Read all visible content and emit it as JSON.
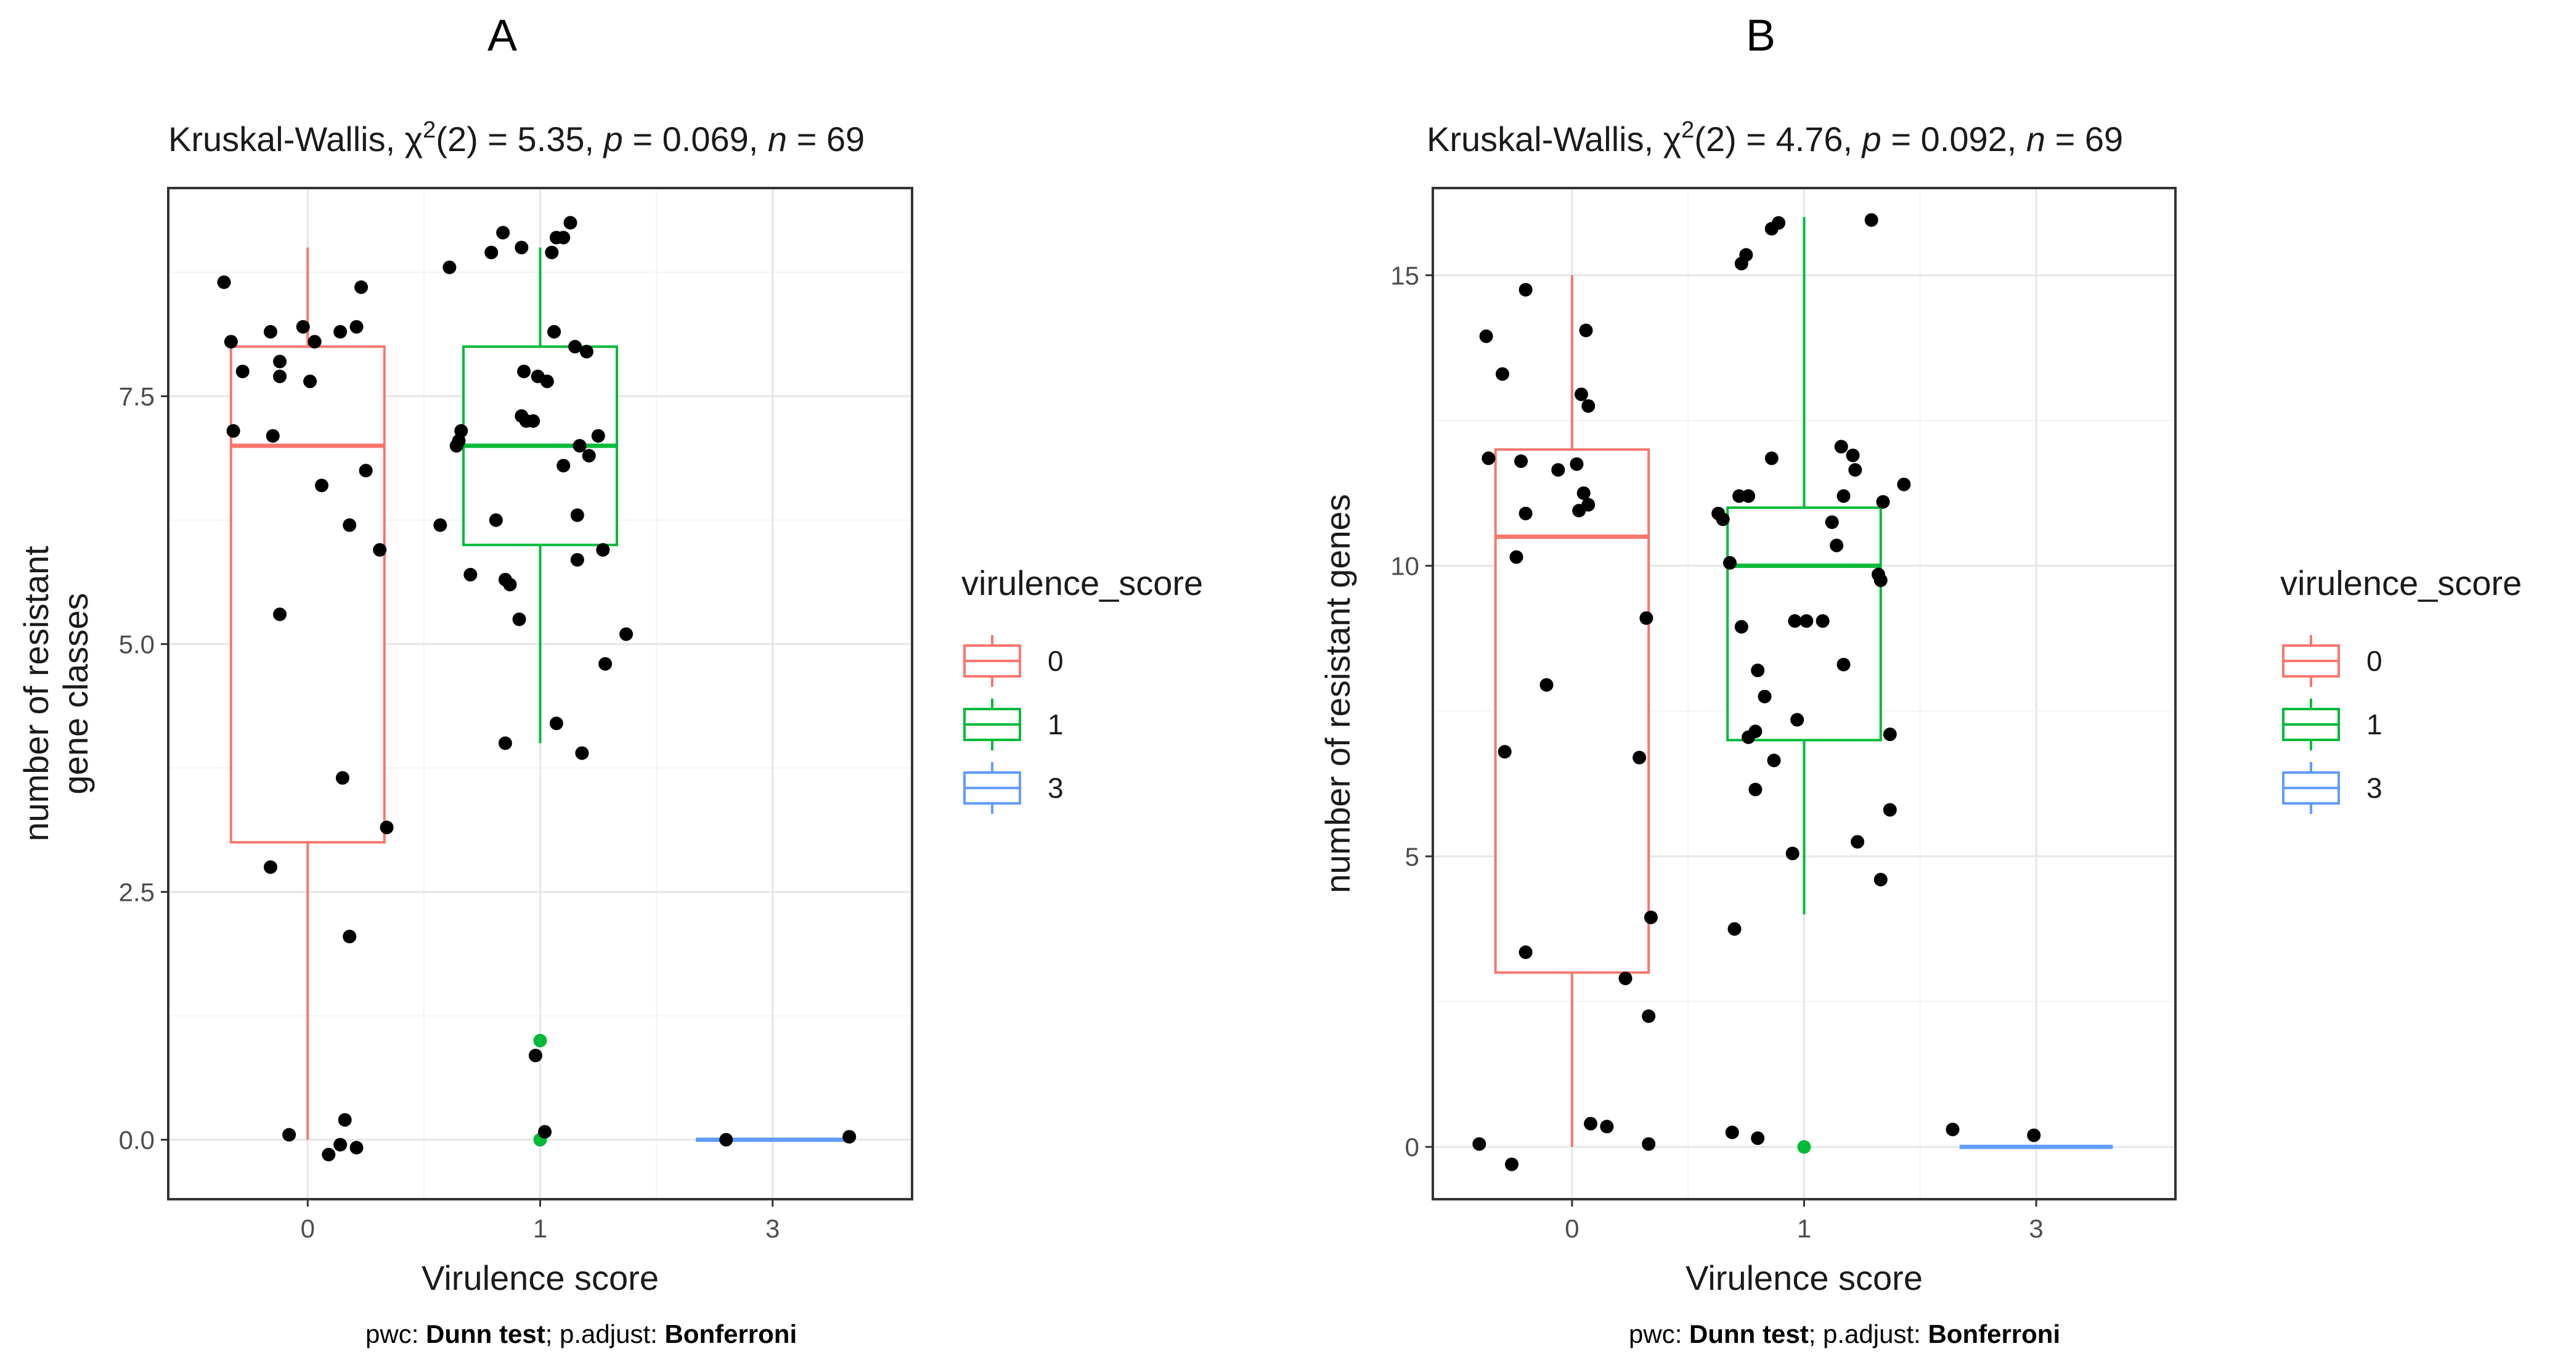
{
  "caption": {
    "prefix": "pwc: ",
    "test": "Dunn test",
    "middle": "; p.adjust: ",
    "adjust": "Bonferroni"
  },
  "legend": {
    "title": "virulence_score",
    "entries": [
      {
        "label": "0",
        "color": "#F8766D"
      },
      {
        "label": "1",
        "color": "#00BA38"
      },
      {
        "label": "3",
        "color": "#619CFF"
      }
    ]
  },
  "chart_data": [
    {
      "panel": "A",
      "type": "box",
      "title_parts": {
        "test": "Kruskal-Wallis, ",
        "chi": "χ",
        "sup": "2",
        "df": "(2) = 5.35, ",
        "p": "p",
        "pval": " = 0.069, ",
        "n": "n",
        "nval": " = 69"
      },
      "xlabel": "Virulence score",
      "ylabel_lines": [
        "number of resistant",
        "gene classes"
      ],
      "categories": [
        "0",
        "1",
        "3"
      ],
      "ylim": [
        -0.6,
        9.6
      ],
      "yticks": [
        0.0,
        2.5,
        5.0,
        7.5
      ],
      "ytick_labels": [
        "0.0",
        "2.5",
        "5.0",
        "7.5"
      ],
      "boxes": [
        {
          "category": "0",
          "color": "#F8766D",
          "q1": 3,
          "median": 7,
          "q3": 8,
          "whisker_low": 0,
          "whisker_high": 9,
          "outliers": []
        },
        {
          "category": "1",
          "color": "#00BA38",
          "q1": 6,
          "median": 7,
          "q3": 8,
          "whisker_low": 4,
          "whisker_high": 9,
          "outliers": [
            1,
            0
          ]
        },
        {
          "category": "3",
          "color": "#619CFF",
          "q1": 0,
          "median": 0,
          "q3": 0,
          "whisker_low": 0,
          "whisker_high": 0,
          "outliers": []
        }
      ],
      "points": [
        {
          "x": -0.36,
          "y": 8.65
        },
        {
          "x": -0.33,
          "y": 8.05
        },
        {
          "x": -0.32,
          "y": 7.15
        },
        {
          "x": -0.28,
          "y": 7.75
        },
        {
          "x": -0.16,
          "y": 8.15
        },
        {
          "x": -0.12,
          "y": 7.85
        },
        {
          "x": -0.12,
          "y": 7.7
        },
        {
          "x": -0.15,
          "y": 7.1
        },
        {
          "x": -0.12,
          "y": 5.3
        },
        {
          "x": -0.02,
          "y": 8.2
        },
        {
          "x": 0.03,
          "y": 8.05
        },
        {
          "x": 0.01,
          "y": 7.65
        },
        {
          "x": 0.06,
          "y": 6.6
        },
        {
          "x": 0.14,
          "y": 8.15
        },
        {
          "x": 0.21,
          "y": 8.2
        },
        {
          "x": 0.23,
          "y": 8.6
        },
        {
          "x": 0.25,
          "y": 6.75
        },
        {
          "x": 0.18,
          "y": 6.2
        },
        {
          "x": 0.31,
          "y": 5.95
        },
        {
          "x": 0.15,
          "y": 3.65
        },
        {
          "x": 0.34,
          "y": 3.15
        },
        {
          "x": -0.16,
          "y": 2.75
        },
        {
          "x": 0.18,
          "y": 2.05
        },
        {
          "x": -0.08,
          "y": 0.05
        },
        {
          "x": 0.09,
          "y": -0.15
        },
        {
          "x": 0.14,
          "y": -0.05
        },
        {
          "x": 0.16,
          "y": 0.2
        },
        {
          "x": 0.21,
          "y": -0.08
        },
        {
          "x": 0.61,
          "y": 8.8
        },
        {
          "x": 0.79,
          "y": 8.95
        },
        {
          "x": 0.84,
          "y": 9.15
        },
        {
          "x": 0.92,
          "y": 9.0
        },
        {
          "x": 1.05,
          "y": 8.95
        },
        {
          "x": 1.07,
          "y": 9.1
        },
        {
          "x": 1.1,
          "y": 9.1
        },
        {
          "x": 1.13,
          "y": 9.25
        },
        {
          "x": 1.15,
          "y": 8.0
        },
        {
          "x": 1.2,
          "y": 7.95
        },
        {
          "x": 1.06,
          "y": 8.15
        },
        {
          "x": 0.93,
          "y": 7.75
        },
        {
          "x": 0.99,
          "y": 7.7
        },
        {
          "x": 1.03,
          "y": 7.65
        },
        {
          "x": 0.92,
          "y": 7.3
        },
        {
          "x": 0.94,
          "y": 7.25
        },
        {
          "x": 0.97,
          "y": 7.25
        },
        {
          "x": 0.66,
          "y": 7.15
        },
        {
          "x": 0.65,
          "y": 7.05
        },
        {
          "x": 0.64,
          "y": 7.0
        },
        {
          "x": 1.25,
          "y": 7.1
        },
        {
          "x": 1.17,
          "y": 7.0
        },
        {
          "x": 1.21,
          "y": 6.9
        },
        {
          "x": 1.1,
          "y": 6.8
        },
        {
          "x": 1.16,
          "y": 6.3
        },
        {
          "x": 0.81,
          "y": 6.25
        },
        {
          "x": 0.57,
          "y": 6.2
        },
        {
          "x": 1.27,
          "y": 5.95
        },
        {
          "x": 1.16,
          "y": 5.85
        },
        {
          "x": 0.7,
          "y": 5.7
        },
        {
          "x": 0.85,
          "y": 5.65
        },
        {
          "x": 0.87,
          "y": 5.6
        },
        {
          "x": 0.91,
          "y": 5.25
        },
        {
          "x": 1.37,
          "y": 5.1
        },
        {
          "x": 1.28,
          "y": 4.8
        },
        {
          "x": 1.07,
          "y": 4.2
        },
        {
          "x": 0.85,
          "y": 4.0
        },
        {
          "x": 1.18,
          "y": 3.9
        },
        {
          "x": 0.98,
          "y": 0.85
        },
        {
          "x": 1.02,
          "y": 0.08
        },
        {
          "x": 1.8,
          "y": 0.0
        },
        {
          "x": 2.33,
          "y": 0.03
        }
      ]
    },
    {
      "panel": "B",
      "type": "box",
      "title_parts": {
        "test": "Kruskal-Wallis, ",
        "chi": "χ",
        "sup": "2",
        "df": "(2) = 4.76, ",
        "p": "p",
        "pval": " = 0.092, ",
        "n": "n",
        "nval": " = 69"
      },
      "xlabel": "Virulence score",
      "ylabel_lines": [
        "number of resistant genes"
      ],
      "categories": [
        "0",
        "1",
        "3"
      ],
      "ylim": [
        -0.9,
        16.5
      ],
      "yticks": [
        0,
        5,
        10,
        15
      ],
      "ytick_labels": [
        "0",
        "5",
        "10",
        "15"
      ],
      "boxes": [
        {
          "category": "0",
          "color": "#F8766D",
          "q1": 3,
          "median": 10.5,
          "q3": 12,
          "whisker_low": 0,
          "whisker_high": 15,
          "outliers": []
        },
        {
          "category": "1",
          "color": "#00BA38",
          "q1": 7,
          "median": 10,
          "q3": 11,
          "whisker_low": 4,
          "whisker_high": 16,
          "outliers": [
            0
          ]
        },
        {
          "category": "3",
          "color": "#619CFF",
          "q1": 0,
          "median": 0,
          "q3": 0,
          "whisker_low": 0,
          "whisker_high": 0,
          "outliers": []
        }
      ],
      "points": [
        {
          "x": -0.37,
          "y": 13.95
        },
        {
          "x": -0.3,
          "y": 13.3
        },
        {
          "x": -0.2,
          "y": 14.75
        },
        {
          "x": -0.36,
          "y": 11.85
        },
        {
          "x": -0.22,
          "y": 11.8
        },
        {
          "x": -0.24,
          "y": 10.15
        },
        {
          "x": -0.2,
          "y": 10.9
        },
        {
          "x": -0.29,
          "y": 6.8
        },
        {
          "x": -0.11,
          "y": 7.95
        },
        {
          "x": -0.2,
          "y": 3.35
        },
        {
          "x": -0.06,
          "y": 11.65
        },
        {
          "x": 0.02,
          "y": 11.75
        },
        {
          "x": 0.05,
          "y": 11.25
        },
        {
          "x": 0.07,
          "y": 11.05
        },
        {
          "x": 0.03,
          "y": 10.95
        },
        {
          "x": 0.04,
          "y": 12.95
        },
        {
          "x": 0.07,
          "y": 12.75
        },
        {
          "x": 0.06,
          "y": 14.05
        },
        {
          "x": 0.32,
          "y": 9.1
        },
        {
          "x": 0.29,
          "y": 6.7
        },
        {
          "x": 0.34,
          "y": 3.95
        },
        {
          "x": 0.23,
          "y": 2.9
        },
        {
          "x": 0.33,
          "y": 2.25
        },
        {
          "x": 0.08,
          "y": 0.4
        },
        {
          "x": 0.15,
          "y": 0.35
        },
        {
          "x": 0.33,
          "y": 0.05
        },
        {
          "x": -0.4,
          "y": 0.05
        },
        {
          "x": -0.26,
          "y": -0.3
        },
        {
          "x": 0.73,
          "y": 15.2
        },
        {
          "x": 0.75,
          "y": 15.35
        },
        {
          "x": 0.86,
          "y": 15.8
        },
        {
          "x": 0.89,
          "y": 15.9
        },
        {
          "x": 1.29,
          "y": 15.95
        },
        {
          "x": 0.63,
          "y": 10.9
        },
        {
          "x": 0.65,
          "y": 10.8
        },
        {
          "x": 0.68,
          "y": 10.05
        },
        {
          "x": 0.72,
          "y": 11.2
        },
        {
          "x": 0.76,
          "y": 11.2
        },
        {
          "x": 0.86,
          "y": 11.85
        },
        {
          "x": 1.16,
          "y": 12.05
        },
        {
          "x": 1.21,
          "y": 11.9
        },
        {
          "x": 1.22,
          "y": 11.65
        },
        {
          "x": 1.17,
          "y": 11.2
        },
        {
          "x": 1.34,
          "y": 11.1
        },
        {
          "x": 1.43,
          "y": 11.4
        },
        {
          "x": 1.12,
          "y": 10.75
        },
        {
          "x": 1.14,
          "y": 10.35
        },
        {
          "x": 1.32,
          "y": 9.85
        },
        {
          "x": 1.33,
          "y": 9.75
        },
        {
          "x": 0.96,
          "y": 9.05
        },
        {
          "x": 1.01,
          "y": 9.05
        },
        {
          "x": 1.08,
          "y": 9.05
        },
        {
          "x": 0.73,
          "y": 8.95
        },
        {
          "x": 0.8,
          "y": 8.2
        },
        {
          "x": 1.17,
          "y": 8.3
        },
        {
          "x": 0.83,
          "y": 7.75
        },
        {
          "x": 0.97,
          "y": 7.35
        },
        {
          "x": 0.79,
          "y": 7.15
        },
        {
          "x": 0.76,
          "y": 7.05
        },
        {
          "x": 1.37,
          "y": 7.1
        },
        {
          "x": 0.87,
          "y": 6.65
        },
        {
          "x": 0.79,
          "y": 6.15
        },
        {
          "x": 1.37,
          "y": 5.8
        },
        {
          "x": 1.23,
          "y": 5.25
        },
        {
          "x": 0.95,
          "y": 5.05
        },
        {
          "x": 1.33,
          "y": 4.6
        },
        {
          "x": 0.7,
          "y": 3.75
        },
        {
          "x": 0.69,
          "y": 0.25
        },
        {
          "x": 0.8,
          "y": 0.15
        },
        {
          "x": 1.64,
          "y": 0.3
        },
        {
          "x": 1.99,
          "y": 0.2
        }
      ]
    }
  ]
}
